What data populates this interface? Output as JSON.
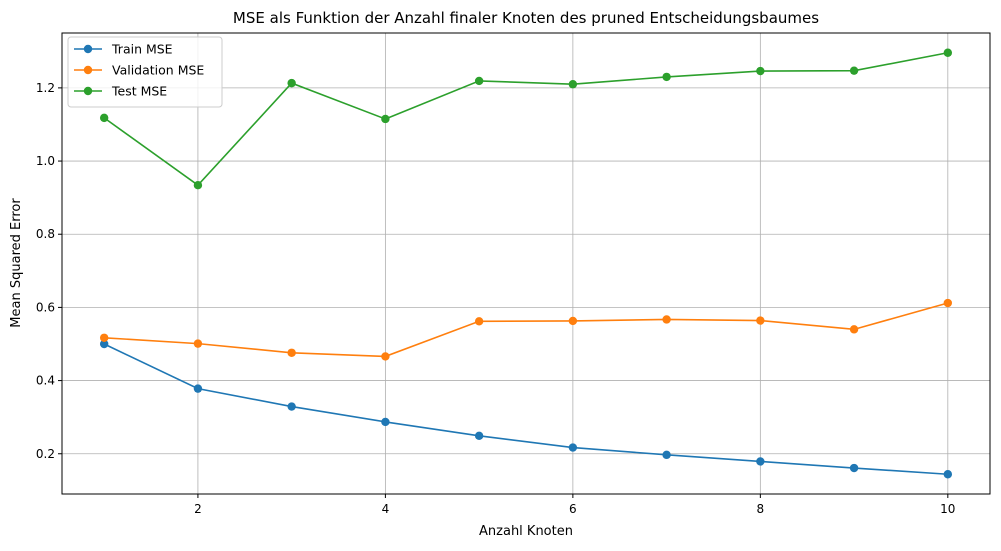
{
  "chart_data": {
    "type": "line",
    "title": "MSE als Funktion der Anzahl finaler Knoten des pruned Entscheidungsbaumes",
    "xlabel": "Anzahl Knoten",
    "ylabel": "Mean Squared Error",
    "x": [
      1,
      2,
      3,
      4,
      5,
      6,
      7,
      8,
      9,
      10
    ],
    "xlim": [
      0.55,
      10.45
    ],
    "ylim": [
      0.09,
      1.35
    ],
    "xticks": [
      2,
      4,
      6,
      8,
      10
    ],
    "xtick_labels": [
      "2",
      "4",
      "6",
      "8",
      "10"
    ],
    "yticks": [
      0.2,
      0.4,
      0.6,
      0.8,
      1.0,
      1.2
    ],
    "ytick_labels": [
      "0.2",
      "0.4",
      "0.6",
      "0.8",
      "1.0",
      "1.2"
    ],
    "grid": true,
    "legend_position": "top-left",
    "series": [
      {
        "name": "Train MSE",
        "color": "#1f77b4",
        "marker": "circle",
        "values": [
          0.5,
          0.378,
          0.329,
          0.287,
          0.249,
          0.217,
          0.197,
          0.179,
          0.161,
          0.144
        ]
      },
      {
        "name": "Validation MSE",
        "color": "#ff7f0e",
        "marker": "circle",
        "values": [
          0.517,
          0.501,
          0.476,
          0.466,
          0.562,
          0.563,
          0.567,
          0.564,
          0.54,
          0.612
        ]
      },
      {
        "name": "Test MSE",
        "color": "#2ca02c",
        "marker": "circle",
        "values": [
          1.118,
          0.934,
          1.213,
          1.115,
          1.219,
          1.21,
          1.23,
          1.246,
          1.247,
          1.296
        ]
      }
    ]
  }
}
